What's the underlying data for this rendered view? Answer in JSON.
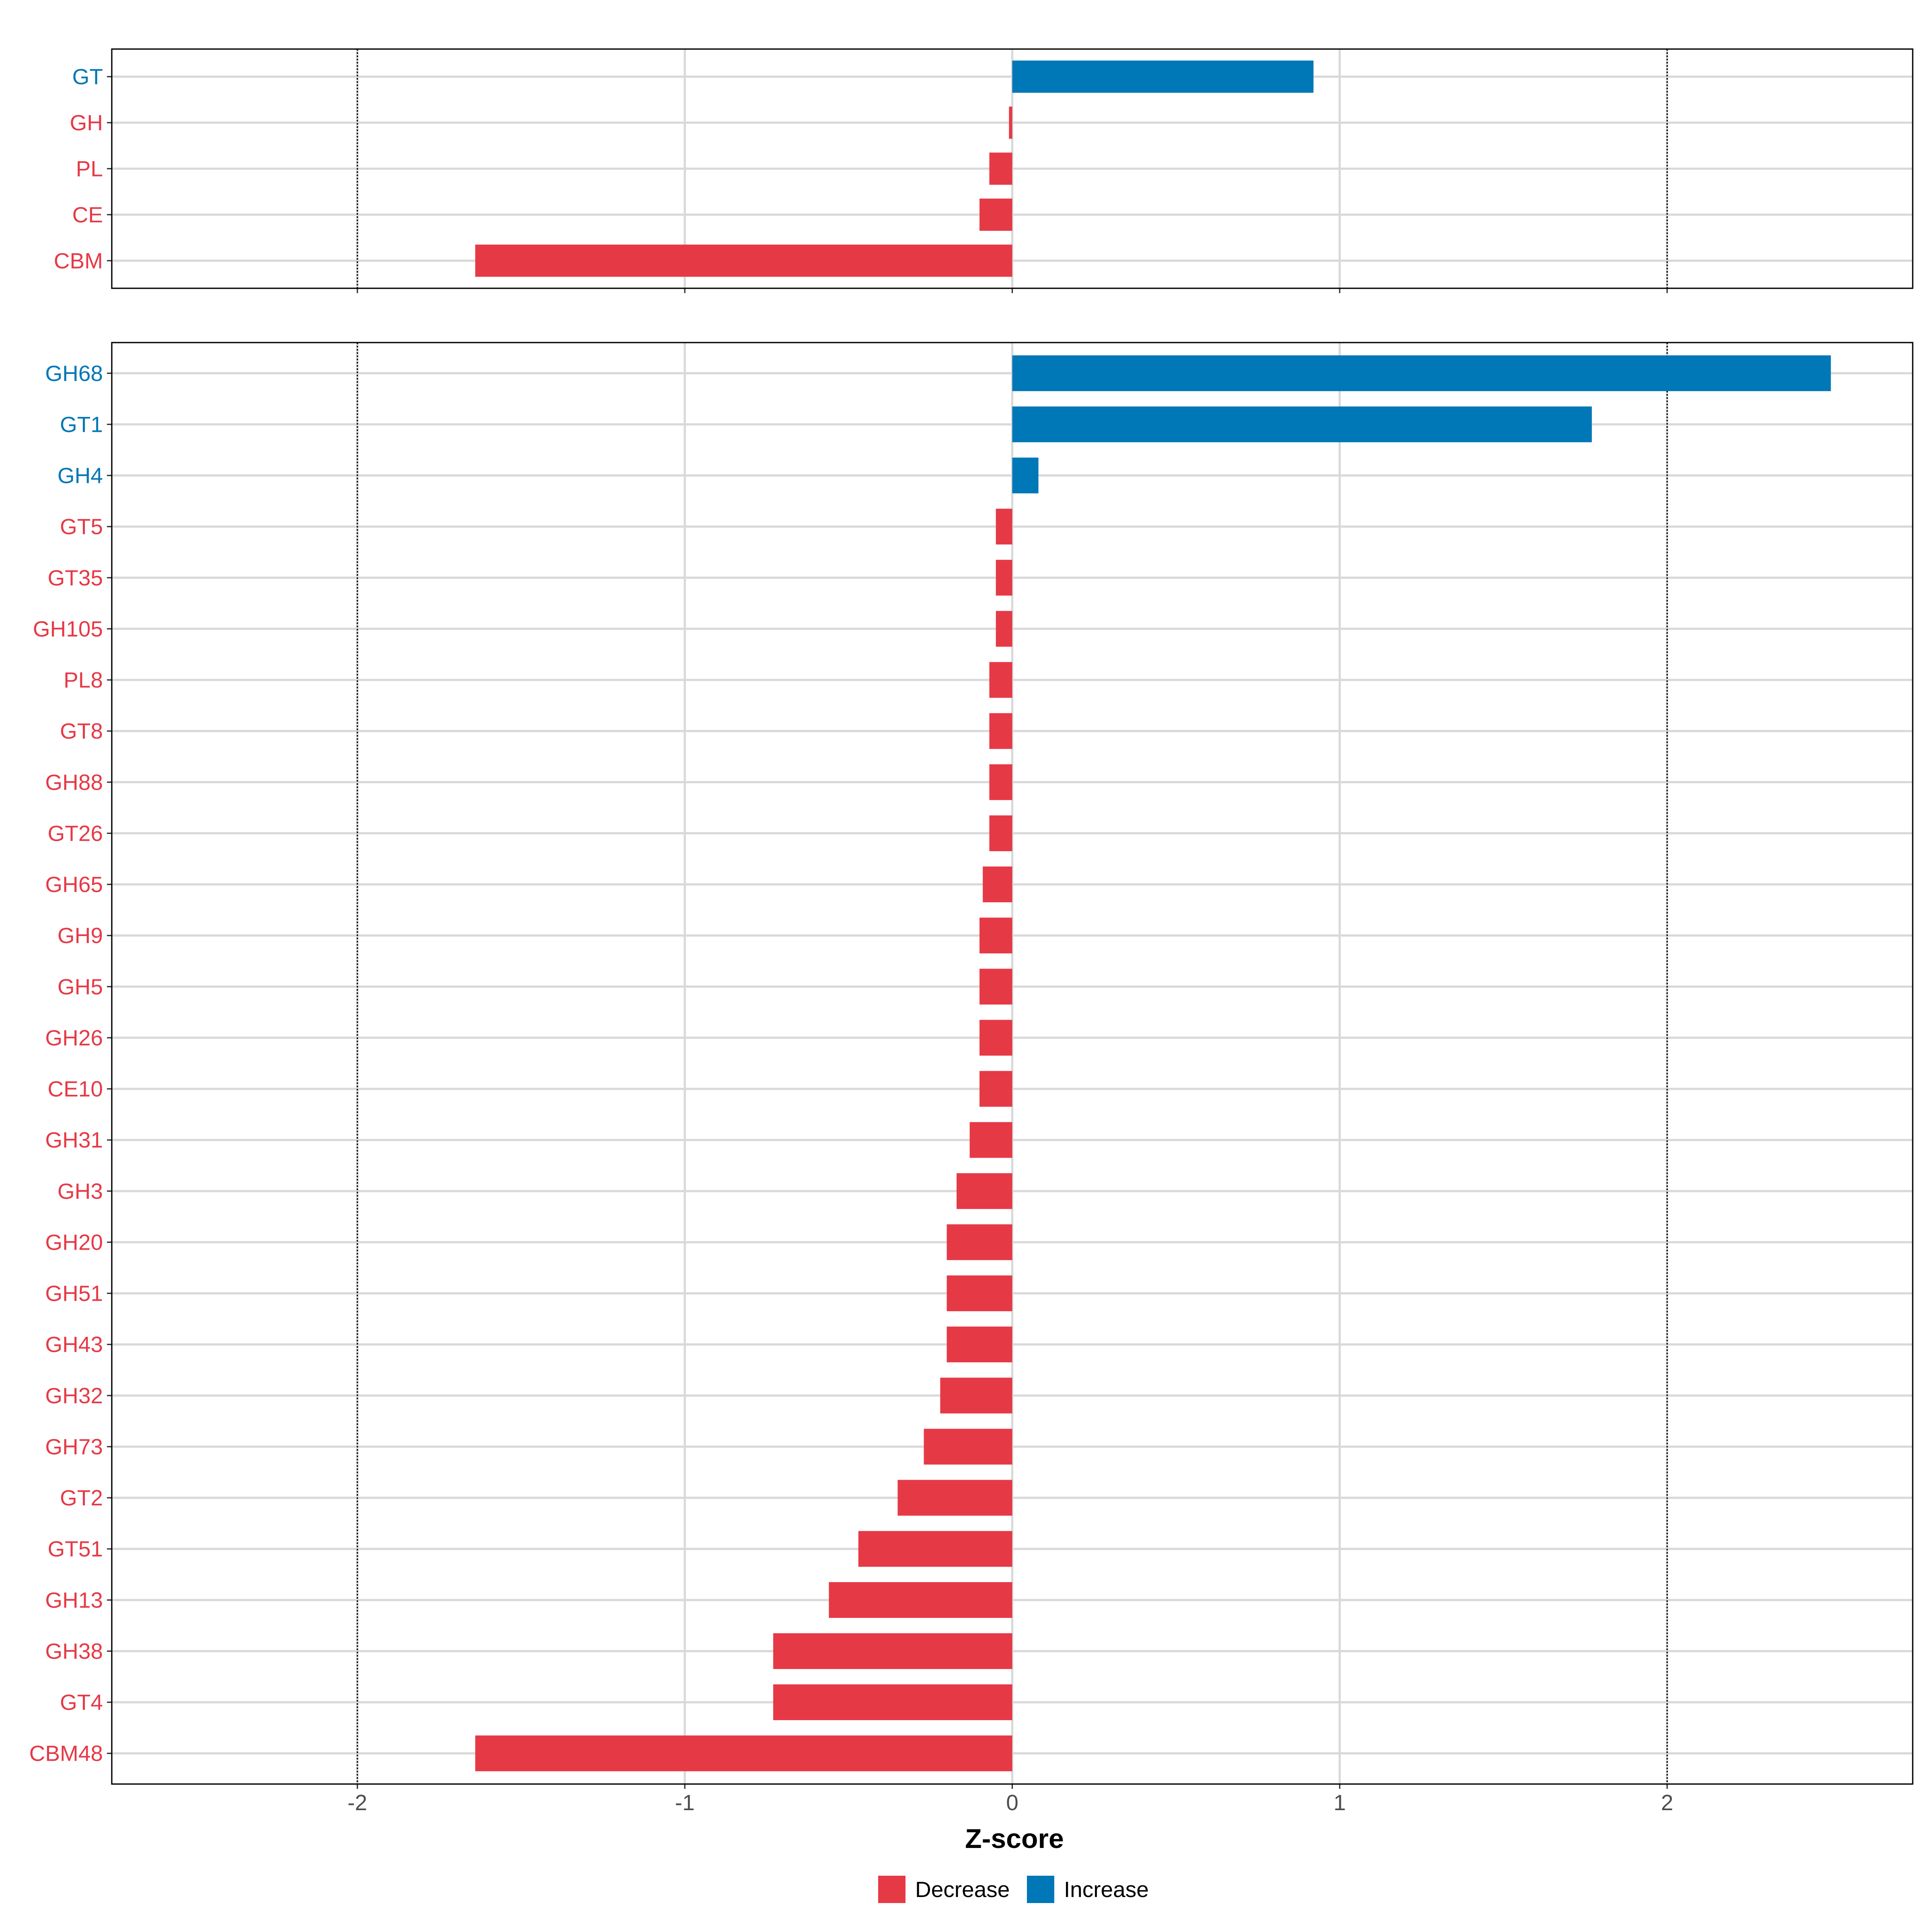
{
  "chart_data": [
    {
      "type": "bar",
      "orientation": "horizontal",
      "panel": "top",
      "categories": [
        "GT",
        "GH",
        "PL",
        "CE",
        "CBM"
      ],
      "values": [
        0.92,
        -0.01,
        -0.07,
        -0.1,
        -1.64
      ],
      "xlim": [
        -2.75,
        2.75
      ],
      "xticks": [
        -2,
        -1,
        0,
        1,
        2
      ],
      "reference_lines": [
        -2,
        2
      ],
      "grid": true
    },
    {
      "type": "bar",
      "orientation": "horizontal",
      "panel": "bottom",
      "categories": [
        "GH68",
        "GT1",
        "GH4",
        "GT5",
        "GT35",
        "GH105",
        "PL8",
        "GT8",
        "GH88",
        "GT26",
        "GH65",
        "GH9",
        "GH5",
        "GH26",
        "CE10",
        "GH31",
        "GH3",
        "GH20",
        "GH51",
        "GH43",
        "GH32",
        "GH73",
        "GT2",
        "GT51",
        "GH13",
        "GH38",
        "GT4",
        "CBM48"
      ],
      "values": [
        2.5,
        1.77,
        0.08,
        -0.05,
        -0.05,
        -0.05,
        -0.07,
        -0.07,
        -0.07,
        -0.07,
        -0.09,
        -0.1,
        -0.1,
        -0.1,
        -0.1,
        -0.13,
        -0.17,
        -0.2,
        -0.2,
        -0.2,
        -0.22,
        -0.27,
        -0.35,
        -0.47,
        -0.56,
        -0.73,
        -0.73,
        -1.64
      ],
      "xlim": [
        -2.75,
        2.75
      ],
      "xticks": [
        -2,
        -1,
        0,
        1,
        2
      ],
      "reference_lines": [
        -2,
        2
      ],
      "grid": true
    }
  ],
  "axes": {
    "xlabel": "Z-score",
    "tick_labels": [
      "-2",
      "-1",
      "0",
      "1",
      "2"
    ]
  },
  "legend": {
    "placement": "bottom",
    "items": [
      {
        "label": "Decrease",
        "color": "#e63946"
      },
      {
        "label": "Increase",
        "color": "#0077b6"
      }
    ]
  },
  "colors": {
    "decrease": "#e63946",
    "increase": "#0077b6"
  }
}
